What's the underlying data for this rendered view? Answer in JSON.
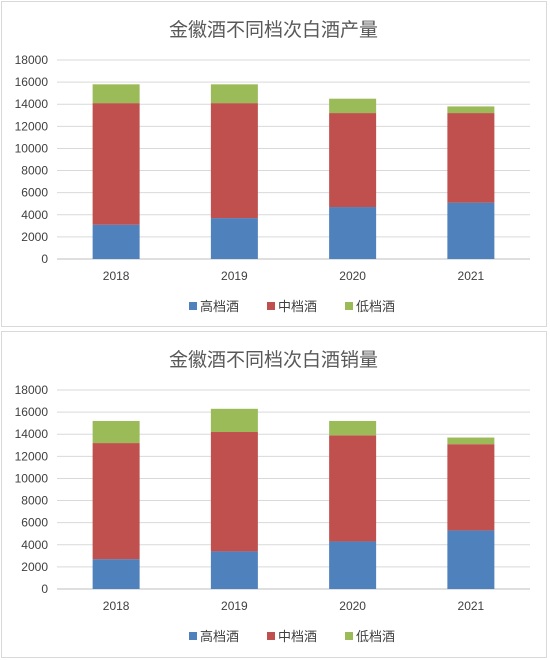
{
  "chart_data": [
    {
      "type": "bar",
      "stacked": true,
      "title": "金徽酒不同档次白酒产量",
      "categories": [
        "2018",
        "2019",
        "2020",
        "2021"
      ],
      "series": [
        {
          "name": "高档酒",
          "color": "#4f81bd",
          "values": [
            3100,
            3700,
            4700,
            5100
          ]
        },
        {
          "name": "中档酒",
          "color": "#c0504d",
          "values": [
            11000,
            10400,
            8500,
            8100
          ]
        },
        {
          "name": "低档酒",
          "color": "#9bbb59",
          "values": [
            1700,
            1700,
            1300,
            600
          ]
        }
      ],
      "ylim": [
        0,
        18000
      ],
      "yticks": [
        0,
        2000,
        4000,
        6000,
        8000,
        10000,
        12000,
        14000,
        16000,
        18000
      ],
      "grid": true,
      "legend": "bottom"
    },
    {
      "type": "bar",
      "stacked": true,
      "title": "金徽酒不同档次白酒销量",
      "categories": [
        "2018",
        "2019",
        "2020",
        "2021"
      ],
      "series": [
        {
          "name": "高档酒",
          "color": "#4f81bd",
          "values": [
            2700,
            3400,
            4300,
            5300
          ]
        },
        {
          "name": "中档酒",
          "color": "#c0504d",
          "values": [
            10500,
            10800,
            9600,
            7800
          ]
        },
        {
          "name": "低档酒",
          "color": "#9bbb59",
          "values": [
            2000,
            2100,
            1300,
            600
          ]
        }
      ],
      "ylim": [
        0,
        18000
      ],
      "yticks": [
        0,
        2000,
        4000,
        6000,
        8000,
        10000,
        12000,
        14000,
        16000,
        18000
      ],
      "grid": true,
      "legend": "bottom"
    }
  ]
}
